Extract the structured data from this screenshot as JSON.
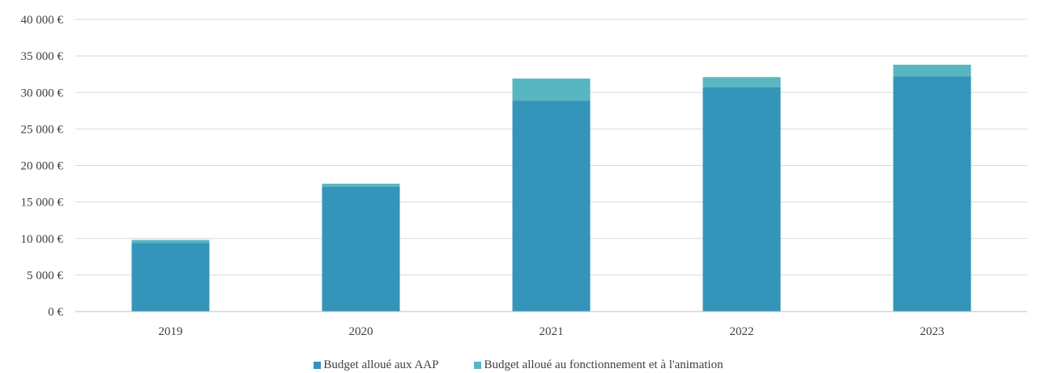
{
  "chart_data": {
    "type": "bar",
    "stacked": true,
    "categories": [
      "2019",
      "2020",
      "2021",
      "2022",
      "2023"
    ],
    "series": [
      {
        "name": "Budget alloué aux AAP",
        "color": "#3494BA",
        "values": [
          9400,
          17100,
          28900,
          30700,
          32200
        ]
      },
      {
        "name": "Budget alloué au fonctionnement et à l'animation",
        "color": "#58B6C0",
        "values": [
          400,
          400,
          3000,
          1400,
          1600
        ]
      }
    ],
    "y_ticks": [
      "0 €",
      "5 000 €",
      "10 000 €",
      "15 000 €",
      "20 000 €",
      "25 000 €",
      "30 000 €",
      "35 000 €",
      "40 000 €"
    ],
    "ylim": [
      0,
      40000
    ],
    "grid": true,
    "legend_position": "bottom",
    "title": "",
    "xlabel": "",
    "ylabel": ""
  }
}
